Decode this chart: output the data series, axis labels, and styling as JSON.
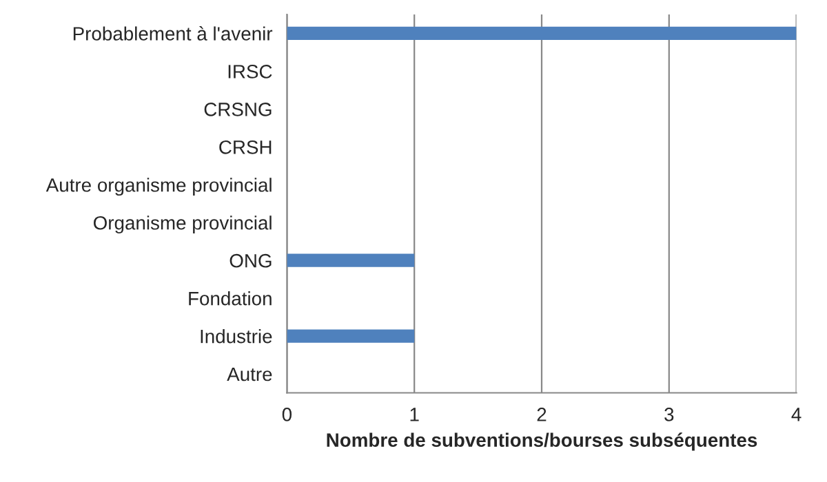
{
  "chart_data": {
    "type": "bar",
    "orientation": "horizontal",
    "xlabel": "Nombre de subventions/bourses subséquentes",
    "categories": [
      "Probablement à l'avenir",
      "IRSC",
      "CRSNG",
      "CRSH",
      "Autre organisme provincial",
      "Organisme provincial",
      "ONG",
      "Fondation",
      "Industrie",
      "Autre"
    ],
    "values": [
      4,
      0,
      0,
      0,
      0,
      0,
      1,
      0,
      1,
      0
    ],
    "color": "#4f81bd",
    "xlim": [
      0,
      4
    ],
    "xticks": [
      0,
      1,
      2,
      3,
      4
    ],
    "grid": "x",
    "legend": false
  }
}
